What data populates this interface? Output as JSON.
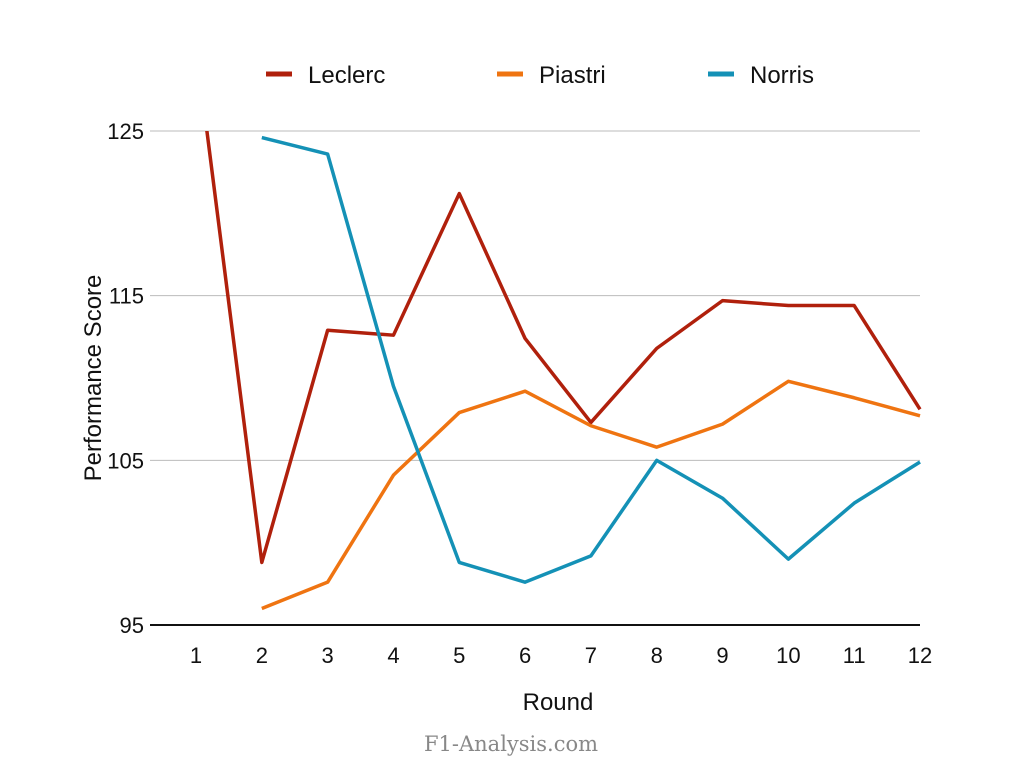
{
  "chart_data": {
    "type": "line",
    "title": "",
    "xlabel": "Round",
    "ylabel": "Performance Score",
    "x": [
      1,
      2,
      3,
      4,
      5,
      6,
      7,
      8,
      9,
      10,
      11,
      12
    ],
    "xlim": [
      1,
      12
    ],
    "ylim": [
      95,
      125
    ],
    "yticks": [
      95,
      105,
      115,
      125
    ],
    "grid": true,
    "legend": "top",
    "series": [
      {
        "name": "Leclerc",
        "color": "#b0200c",
        "values": [
          130.2,
          98.8,
          112.9,
          112.6,
          121.2,
          112.4,
          107.3,
          111.8,
          114.7,
          114.4,
          114.4,
          108.1
        ]
      },
      {
        "name": "Piastri",
        "color": "#ef7411",
        "values": [
          null,
          96.0,
          97.6,
          104.1,
          107.9,
          109.2,
          107.1,
          105.8,
          107.2,
          109.8,
          108.8,
          107.7
        ]
      },
      {
        "name": "Norris",
        "color": "#1491b6",
        "values": [
          null,
          124.6,
          123.6,
          109.5,
          98.8,
          97.6,
          99.2,
          105.0,
          102.7,
          99.0,
          102.4,
          104.9
        ]
      }
    ]
  },
  "watermark": "F1-Analysis.com"
}
